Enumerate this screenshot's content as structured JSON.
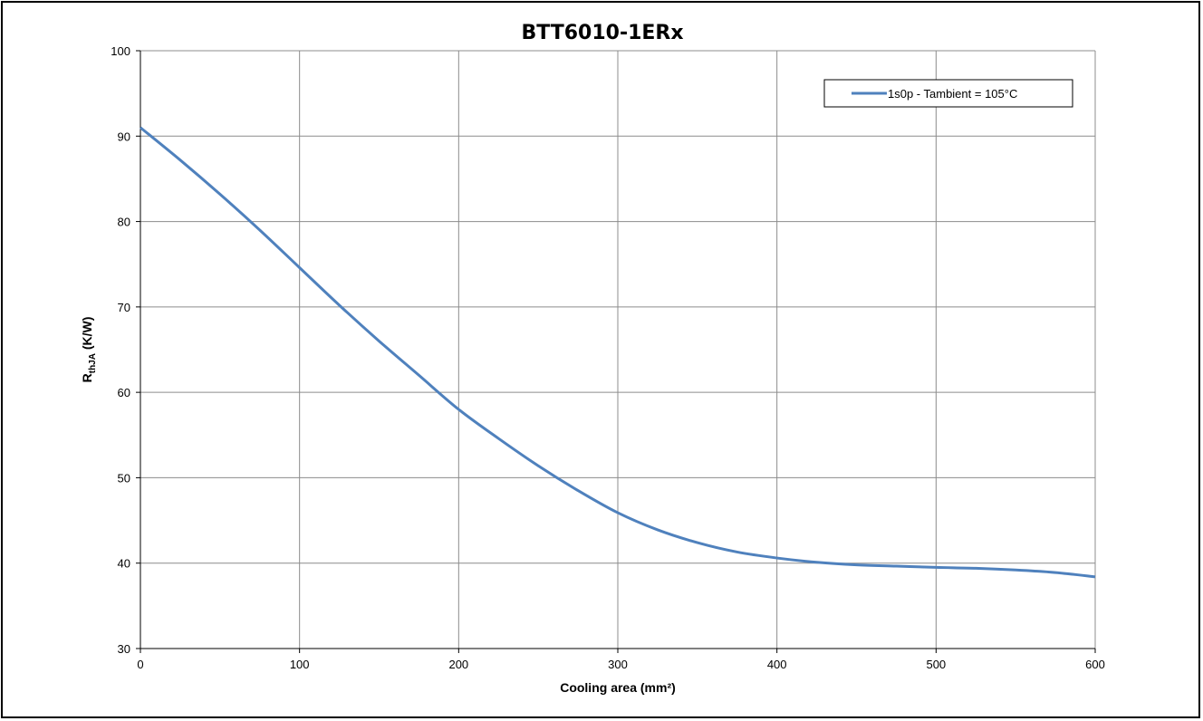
{
  "chart_data": {
    "type": "line",
    "title": "BTT6010-1ERx",
    "xlabel": "Cooling area (mm²)",
    "ylabel": {
      "main": "R",
      "sub": "thJA",
      "unit": " (K/W)"
    },
    "xlim": [
      0,
      600
    ],
    "ylim": [
      30,
      100
    ],
    "x_ticks": [
      "0",
      "100",
      "200",
      "300",
      "400",
      "500",
      "600"
    ],
    "y_ticks": [
      "30",
      "40",
      "50",
      "60",
      "70",
      "80",
      "90",
      "100"
    ],
    "grid": true,
    "legend_position": "top-right",
    "series": [
      {
        "name": "1s0p - Tambient = 105°C",
        "color": "#4F81BD",
        "x": [
          0,
          25,
          50,
          75,
          100,
          125,
          150,
          175,
          200,
          225,
          250,
          275,
          300,
          325,
          350,
          375,
          400,
          425,
          450,
          475,
          500,
          525,
          550,
          575,
          600
        ],
        "y": [
          91.0,
          87.2,
          83.2,
          79.0,
          74.6,
          70.2,
          66.0,
          62.0,
          58.0,
          54.6,
          51.4,
          48.5,
          45.9,
          43.9,
          42.4,
          41.3,
          40.6,
          40.1,
          39.8,
          39.65,
          39.5,
          39.4,
          39.2,
          38.9,
          38.4
        ]
      }
    ]
  }
}
